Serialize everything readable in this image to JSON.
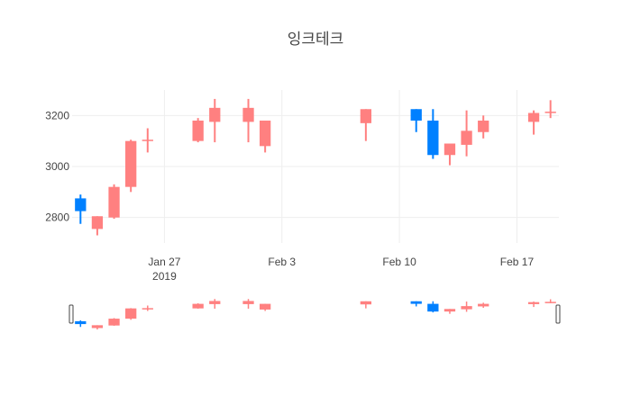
{
  "chart_data": {
    "type": "candlestick",
    "title": "잉크테크",
    "xlabel": "",
    "ylabel": "",
    "grid": true,
    "colors": {
      "increasing": "#FF8080",
      "decreasing": "#0080FF"
    },
    "xlim": [
      "2019-01-22",
      "2019-02-19"
    ],
    "ylim": [
      2700,
      3300
    ],
    "x_ticks": [
      {
        "date": "2019-01-27",
        "label": "Jan 27",
        "sublabel": "2019"
      },
      {
        "date": "2019-02-03",
        "label": "Feb 3",
        "sublabel": ""
      },
      {
        "date": "2019-02-10",
        "label": "Feb 10",
        "sublabel": ""
      },
      {
        "date": "2019-02-17",
        "label": "Feb 17",
        "sublabel": ""
      }
    ],
    "y_ticks": [
      2800,
      3000,
      3200
    ],
    "range_slider": true,
    "candles": [
      {
        "date": "2019-01-22",
        "open": 2875,
        "high": 2890,
        "low": 2775,
        "close": 2825
      },
      {
        "date": "2019-01-23",
        "open": 2755,
        "high": 2805,
        "low": 2730,
        "close": 2805
      },
      {
        "date": "2019-01-24",
        "open": 2800,
        "high": 2930,
        "low": 2795,
        "close": 2920
      },
      {
        "date": "2019-01-25",
        "open": 2920,
        "high": 3105,
        "low": 2900,
        "close": 3100
      },
      {
        "date": "2019-01-26",
        "open": 3100,
        "high": 3150,
        "low": 3055,
        "close": 3105
      },
      {
        "date": "2019-01-29",
        "open": 3100,
        "high": 3190,
        "low": 3095,
        "close": 3180
      },
      {
        "date": "2019-01-30",
        "open": 3175,
        "high": 3265,
        "low": 3095,
        "close": 3230
      },
      {
        "date": "2019-02-01",
        "open": 3175,
        "high": 3265,
        "low": 3095,
        "close": 3230
      },
      {
        "date": "2019-02-02",
        "open": 3080,
        "high": 3180,
        "low": 3055,
        "close": 3180
      },
      {
        "date": "2019-02-08",
        "open": 3170,
        "high": 3225,
        "low": 3100,
        "close": 3225
      },
      {
        "date": "2019-02-11",
        "open": 3225,
        "high": 3225,
        "low": 3135,
        "close": 3180
      },
      {
        "date": "2019-02-12",
        "open": 3180,
        "high": 3225,
        "low": 3030,
        "close": 3045
      },
      {
        "date": "2019-02-13",
        "open": 3045,
        "high": 3090,
        "low": 3005,
        "close": 3090
      },
      {
        "date": "2019-02-14",
        "open": 3085,
        "high": 3220,
        "low": 3040,
        "close": 3140
      },
      {
        "date": "2019-02-15",
        "open": 3135,
        "high": 3200,
        "low": 3110,
        "close": 3180
      },
      {
        "date": "2019-02-18",
        "open": 3175,
        "high": 3220,
        "low": 3125,
        "close": 3210
      },
      {
        "date": "2019-02-19",
        "open": 3210,
        "high": 3260,
        "low": 3190,
        "close": 3215
      }
    ]
  }
}
